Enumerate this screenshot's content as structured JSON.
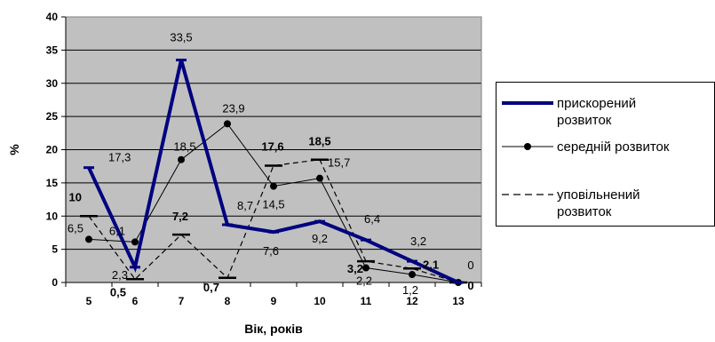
{
  "chart_data": {
    "type": "line",
    "xlabel": "Вік, років",
    "ylabel": "%",
    "ylim": [
      0,
      40
    ],
    "yticks": [
      0,
      5,
      10,
      15,
      20,
      25,
      30,
      35,
      40
    ],
    "categories": [
      "5",
      "6",
      "7",
      "8",
      "9",
      "10",
      "11",
      "12",
      "13"
    ],
    "grid": true,
    "legend_position": "right",
    "plot_background": "#c0c0c0",
    "series": [
      {
        "name": "прискорений розвиток",
        "color": "#000080",
        "style": "thick-solid",
        "values": [
          17.3,
          2.3,
          33.5,
          8.7,
          7.6,
          9.2,
          6.4,
          3.2,
          0
        ],
        "labels": [
          "17,3",
          "2,3",
          "33,5",
          "8,7",
          "7,6",
          "9,2",
          "6,4",
          "3,2",
          "0"
        ]
      },
      {
        "name": "середній розвиток",
        "color": "#000000",
        "style": "thin-solid-dots",
        "values": [
          6.5,
          6.1,
          18.5,
          23.9,
          14.5,
          15.7,
          2.2,
          1.2,
          0
        ],
        "labels": [
          "6,5",
          "6,1",
          "18,5",
          "23,9",
          "14,5",
          "15,7",
          "2,2",
          "1,2",
          "0"
        ]
      },
      {
        "name": "уповільнений розвиток",
        "color": "#000000",
        "style": "dashed-dash-markers",
        "values": [
          10,
          0.5,
          7.2,
          0.7,
          17.6,
          18.5,
          3.2,
          2.1,
          0
        ],
        "labels": [
          "10",
          "0,5",
          "7,2",
          "0,7",
          "17,6",
          "18,5",
          "3,2",
          "2,1",
          "0"
        ]
      }
    ],
    "legend": [
      {
        "text": "прискорений\nрозвиток"
      },
      {
        "text": "середній розвиток"
      },
      {
        "text": "уповільнений\nрозвиток"
      }
    ]
  }
}
